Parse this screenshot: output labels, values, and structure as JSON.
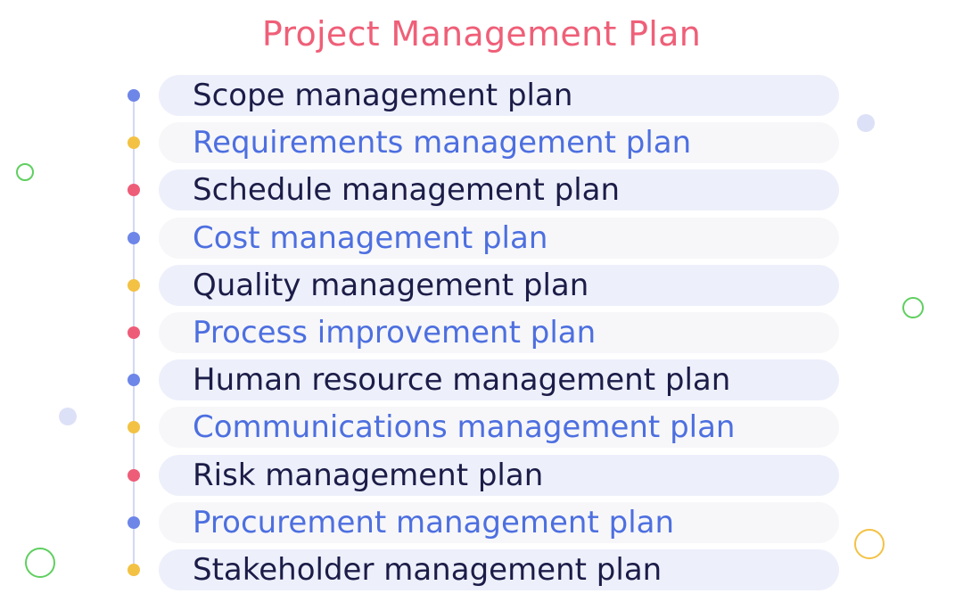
{
  "title": "Project Management Plan",
  "colors": {
    "title": "#ef5f78",
    "dark_text": "#1c1c48",
    "blue_text": "#4d6fe0",
    "dot_blue": "#6d86e8",
    "dot_yellow": "#f3c244",
    "dot_red": "#ee5d78",
    "row_shade_a": "#edf0fb",
    "row_shade_b": "#f7f7f9"
  },
  "items": [
    {
      "label": "Scope management plan",
      "dot": "blue",
      "text": "dark"
    },
    {
      "label": "Requirements management plan",
      "dot": "yellow",
      "text": "blue"
    },
    {
      "label": "Schedule management plan",
      "dot": "red",
      "text": "dark"
    },
    {
      "label": "Cost management plan",
      "dot": "blue",
      "text": "blue"
    },
    {
      "label": "Quality management plan",
      "dot": "yellow",
      "text": "dark"
    },
    {
      "label": "Process improvement plan",
      "dot": "red",
      "text": "blue"
    },
    {
      "label": "Human resource management plan",
      "dot": "blue",
      "text": "dark"
    },
    {
      "label": "Communications management plan",
      "dot": "yellow",
      "text": "blue"
    },
    {
      "label": "Risk management plan",
      "dot": "red",
      "text": "dark"
    },
    {
      "label": "Procurement management plan",
      "dot": "blue",
      "text": "blue"
    },
    {
      "label": "Stakeholder management plan",
      "dot": "yellow",
      "text": "dark"
    }
  ]
}
